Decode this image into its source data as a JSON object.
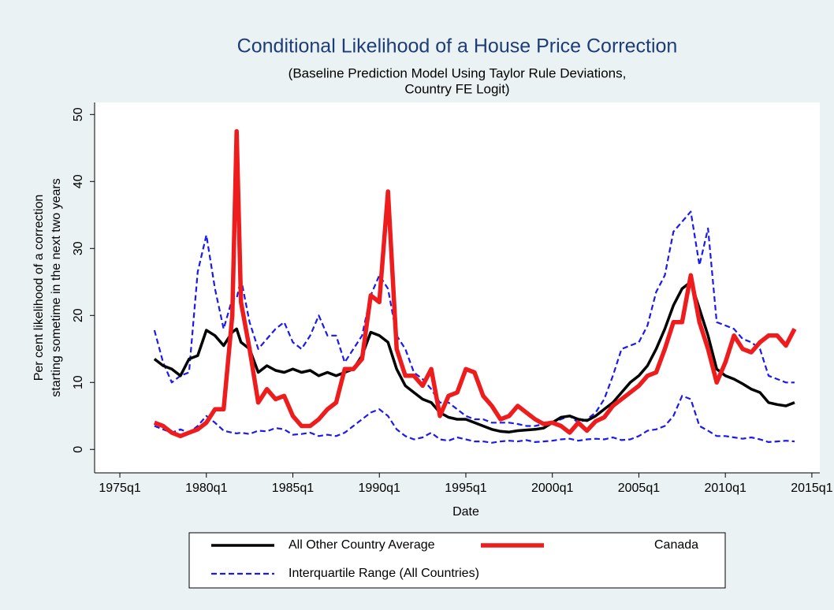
{
  "chart_data": {
    "type": "line",
    "title": "Conditional Likelihood of a House Price Correction",
    "subtitle": [
      "(Baseline Prediction Model Using Taylor Rule Deviations,",
      "Country FE Logit)"
    ],
    "xlabel": "Date",
    "ylabel": [
      "Per cent likelihood of a correction",
      "starting sometime in the next two years"
    ],
    "x": [
      1977,
      1977.5,
      1978,
      1978.5,
      1979,
      1979.5,
      1980,
      1980.5,
      1981,
      1981.5,
      1981.75,
      1982,
      1982.5,
      1983,
      1983.5,
      1984,
      1984.5,
      1985,
      1985.5,
      1986,
      1986.5,
      1987,
      1987.5,
      1988,
      1988.5,
      1989,
      1989.5,
      1990,
      1990.5,
      1991,
      1991.5,
      1992,
      1992.5,
      1993,
      1993.5,
      1994,
      1994.5,
      1995,
      1995.5,
      1996,
      1996.5,
      1997,
      1997.5,
      1998,
      1998.5,
      1999,
      1999.5,
      2000,
      2000.5,
      2001,
      2001.5,
      2002,
      2002.5,
      2003,
      2003.5,
      2004,
      2004.5,
      2005,
      2005.5,
      2006,
      2006.5,
      2007,
      2007.5,
      2008,
      2008.5,
      2009,
      2009.5,
      2010,
      2010.5,
      2011,
      2011.5,
      2012,
      2012.5,
      2013,
      2013.5,
      2014
    ],
    "series": [
      {
        "name": "All Other Country Average",
        "color": "#000000",
        "values": [
          13.5,
          12.5,
          12,
          11,
          13.5,
          14,
          17.8,
          17,
          15.5,
          17.5,
          18,
          16,
          15,
          11.5,
          12.5,
          11.8,
          11.5,
          12,
          11.5,
          11.8,
          11,
          11.5,
          11,
          11.5,
          12,
          14,
          17.5,
          17,
          16,
          12,
          9.5,
          8.5,
          7.5,
          7,
          5.5,
          4.8,
          4.5,
          4.5,
          4,
          3.5,
          3,
          2.7,
          2.6,
          2.8,
          2.9,
          3,
          3.2,
          4,
          4.8,
          5,
          4.5,
          4.3,
          5,
          6,
          7,
          8.5,
          10,
          11,
          12.5,
          15,
          18,
          21.5,
          24,
          25,
          21,
          17,
          12,
          11,
          10.5,
          9.8,
          9,
          8.5,
          7,
          6.7,
          6.5,
          7
        ]
      },
      {
        "name": "Canada",
        "color": "#ee1c1c",
        "values": [
          4,
          3.5,
          2.5,
          2,
          2.5,
          3,
          4,
          6,
          6,
          20,
          47.5,
          22,
          15,
          7,
          9,
          7.5,
          8,
          5,
          3.5,
          3.5,
          4.5,
          6,
          7,
          12,
          12,
          13.5,
          23,
          22,
          38.5,
          15,
          11,
          11,
          9.5,
          12,
          5,
          8,
          8.5,
          12,
          11.5,
          8,
          6.5,
          4.5,
          5,
          6.5,
          5.5,
          4.5,
          3.8,
          4,
          3.5,
          2.5,
          4,
          2.8,
          4.2,
          4.8,
          6.5,
          7.5,
          8.5,
          9.5,
          11,
          11.5,
          15,
          19,
          19,
          26,
          19,
          15,
          10,
          13,
          17,
          15,
          14.5,
          16,
          17,
          17,
          15.5,
          18
        ]
      },
      {
        "name": "Interquartile Range (All Countries)",
        "color": "#1a1aee",
        "values": [
          17.8,
          13,
          10,
          11,
          11.5,
          26.5,
          32,
          24,
          18,
          22.5,
          22.5,
          25.5,
          19,
          15,
          16.5,
          18,
          19,
          16,
          15,
          17,
          20,
          17,
          17,
          13,
          15,
          17,
          23,
          26,
          24,
          17,
          15,
          11.5,
          10.5,
          9,
          7,
          7,
          6,
          5,
          4.5,
          4.5,
          4,
          4,
          4,
          3.8,
          3.5,
          3.5,
          3.8,
          4,
          4.5,
          5,
          4,
          4.5,
          5.5,
          7.5,
          11,
          15,
          15.5,
          16,
          18.5,
          23.5,
          26,
          32.5,
          34,
          35.5,
          27.5,
          33,
          19,
          18.5,
          18,
          16.5,
          16,
          15,
          11,
          10.5,
          10,
          10
        ],
        "lower": [
          3.5,
          3,
          2.5,
          3,
          2.5,
          3.5,
          5,
          4,
          2.8,
          2.5,
          2.4,
          2.5,
          2.3,
          2.8,
          2.7,
          3.2,
          3,
          2.2,
          2.3,
          2.5,
          2,
          2.2,
          2,
          2.5,
          3.5,
          4.5,
          5.5,
          6,
          5,
          3,
          2,
          1.5,
          1.8,
          2.5,
          1.5,
          1.3,
          1.8,
          1.5,
          1.2,
          1.2,
          1,
          1.2,
          1.3,
          1.2,
          1.4,
          1.1,
          1.2,
          1.3,
          1.5,
          1.6,
          1.3,
          1.5,
          1.6,
          1.5,
          1.8,
          1.4,
          1.5,
          2,
          2.8,
          3,
          3.5,
          5,
          8,
          7.5,
          3.5,
          2.8,
          2,
          2,
          1.8,
          1.6,
          1.8,
          1.5,
          1.1,
          1.2,
          1.3,
          1.2
        ]
      }
    ],
    "xlim": [
      1973.54,
      2015.46
    ],
    "xticks": [
      {
        "value": 1975,
        "label": "1975q1"
      },
      {
        "value": 1980,
        "label": "1980q1"
      },
      {
        "value": 1985,
        "label": "1985q1"
      },
      {
        "value": 1990,
        "label": "1990q1"
      },
      {
        "value": 1995,
        "label": "1995q1"
      },
      {
        "value": 2000,
        "label": "2000q1"
      },
      {
        "value": 2005,
        "label": "2005q1"
      },
      {
        "value": 2010,
        "label": "2010q1"
      },
      {
        "value": 2015,
        "label": "2015q1"
      }
    ],
    "ylim": [
      -3.5,
      51.8
    ],
    "yticks": [
      0,
      10,
      20,
      30,
      40,
      50
    ]
  }
}
